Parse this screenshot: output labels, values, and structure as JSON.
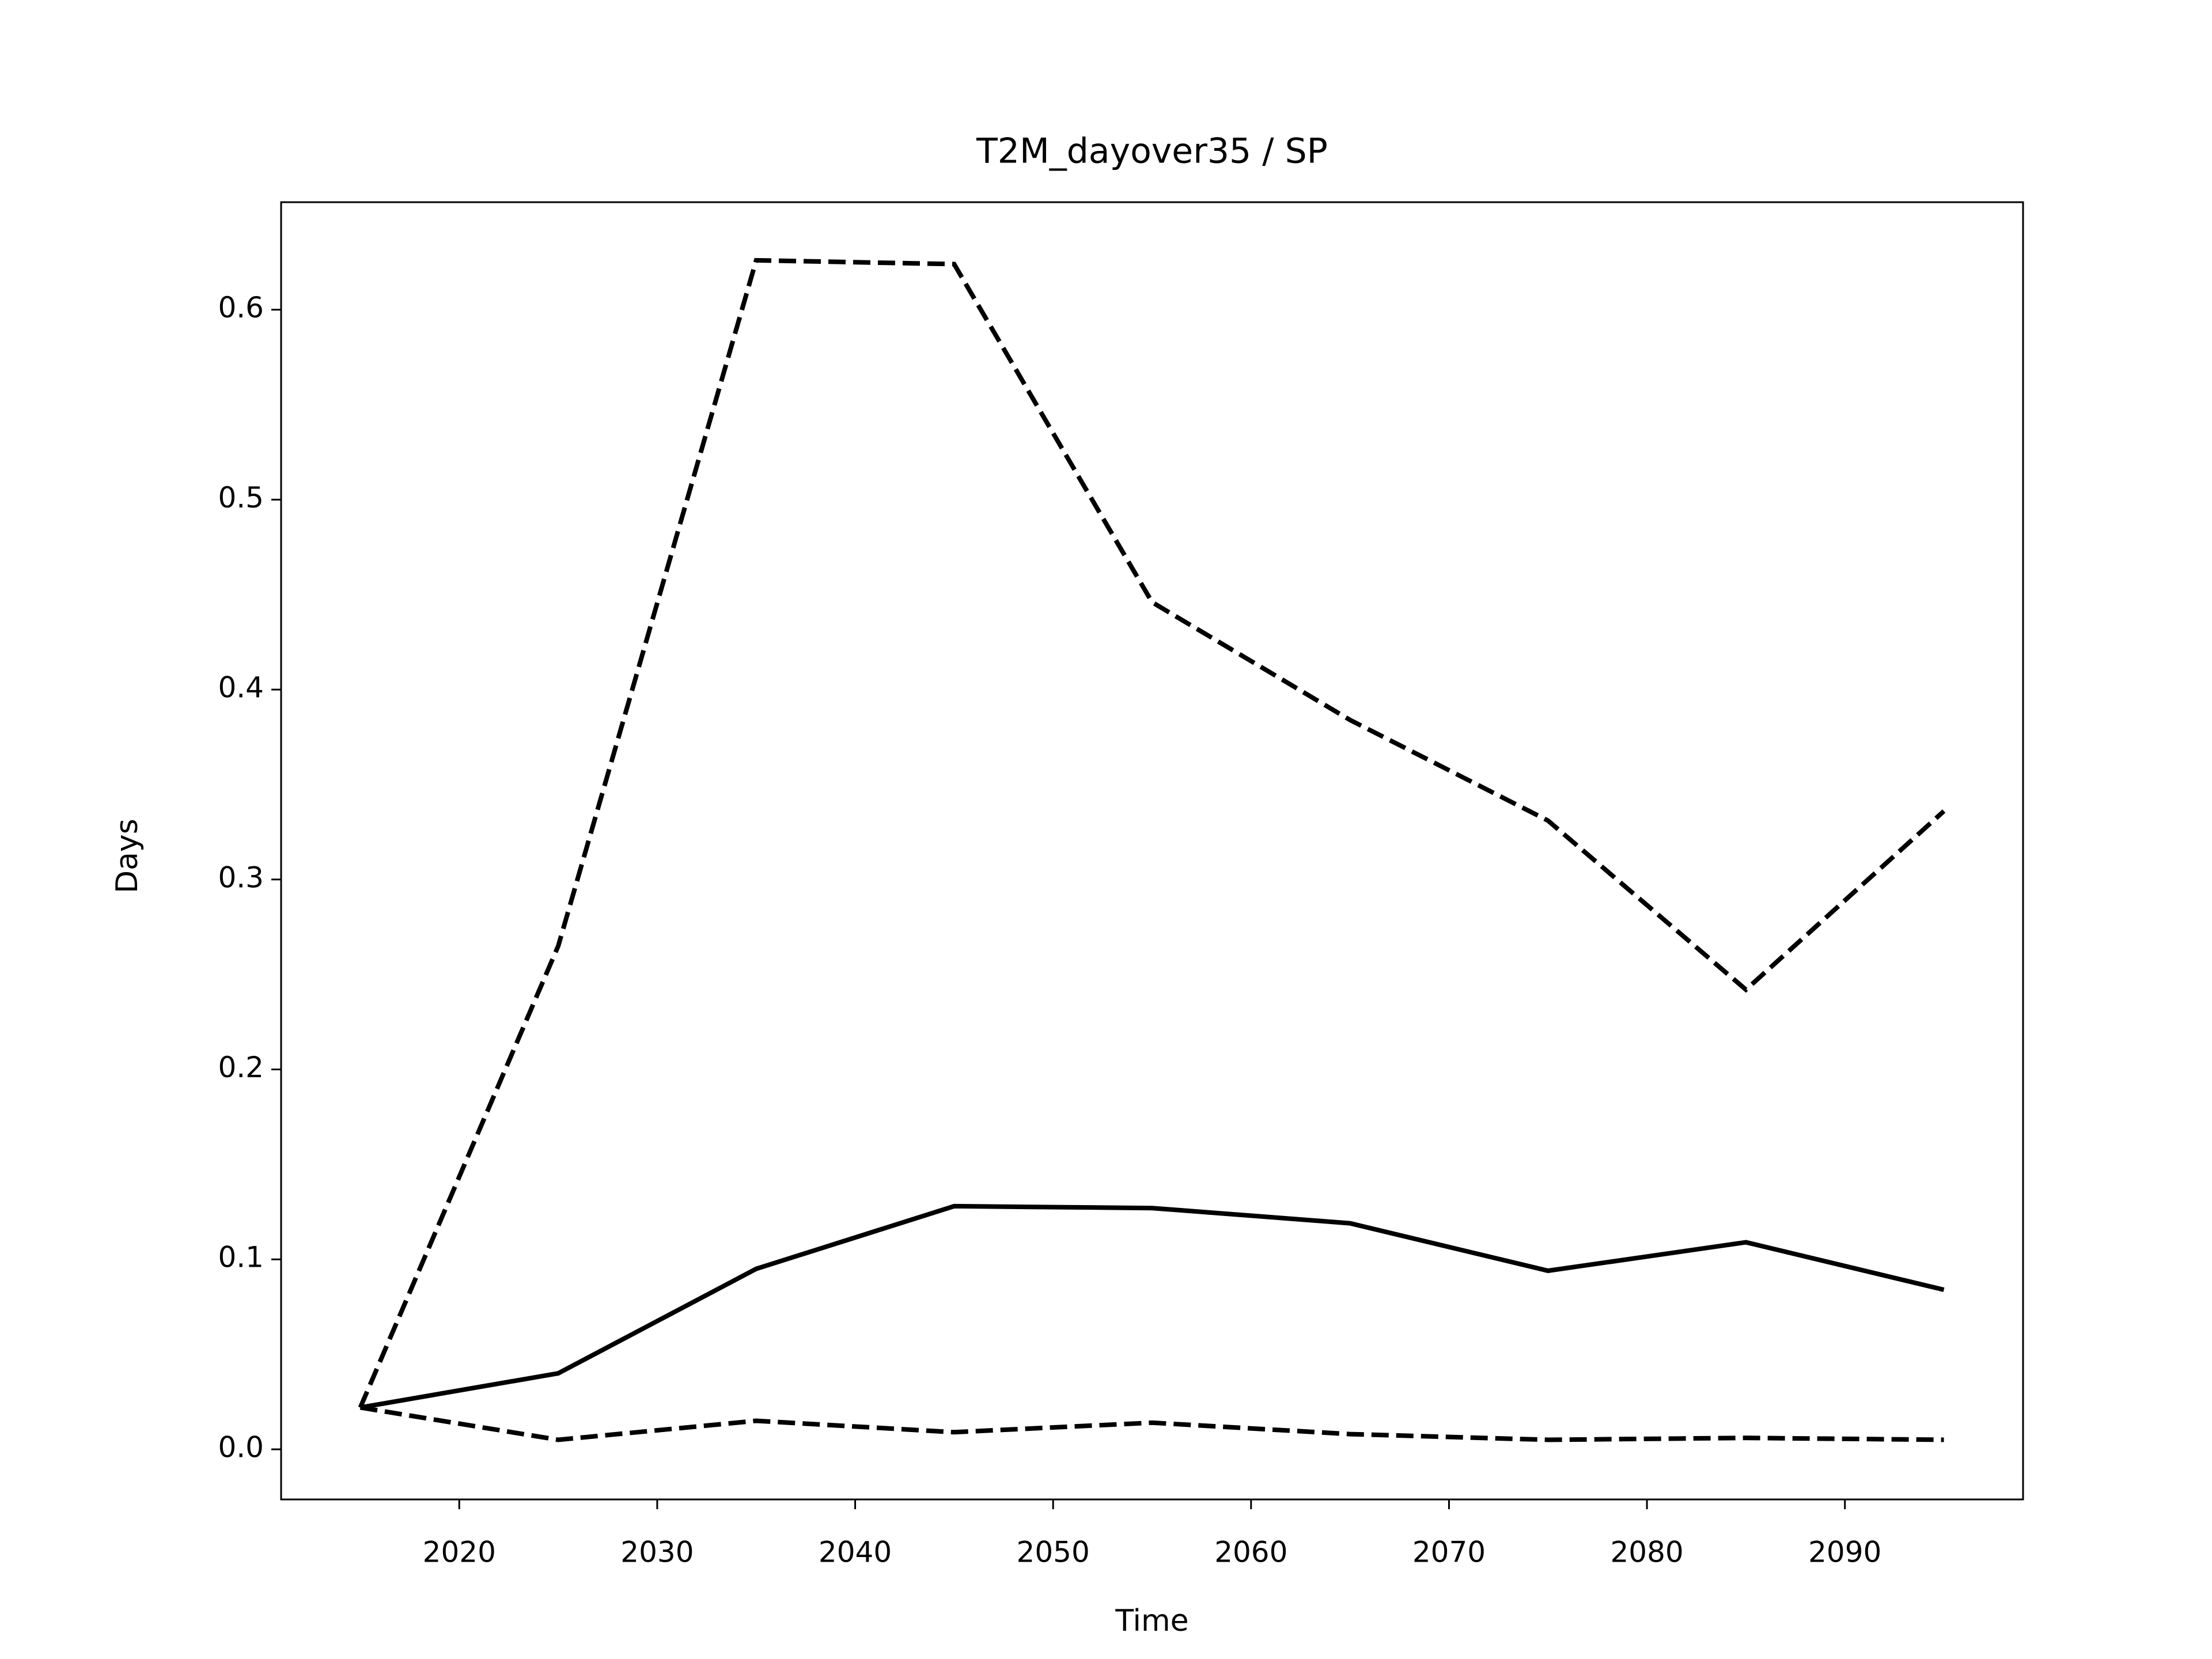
{
  "chart_data": {
    "type": "line",
    "title": "T2M_dayover35 / SP",
    "x_label": "Time",
    "y_label": "Days",
    "x": [
      2015,
      2025,
      2035,
      2045,
      2055,
      2065,
      2075,
      2085,
      2095
    ],
    "series": [
      {
        "color": "#000000",
        "dash": "solid",
        "values": [
          0.022,
          0.04,
          0.095,
          0.128,
          0.127,
          0.119,
          0.094,
          0.109,
          0.084
        ]
      },
      {
        "color": "#000000",
        "dash": "dashed",
        "values": [
          0.022,
          0.265,
          0.626,
          0.624,
          0.446,
          0.384,
          0.331,
          0.242,
          0.336
        ]
      },
      {
        "color": "#000000",
        "dash": "dashed",
        "values": [
          0.022,
          0.005,
          0.015,
          0.009,
          0.014,
          0.008,
          0.005,
          0.006,
          0.005
        ]
      }
    ],
    "xlim": [
      2011,
      2099
    ],
    "xticks": [
      2020,
      2030,
      2040,
      2050,
      2060,
      2070,
      2080,
      2090
    ],
    "ylim": [
      -0.0264,
      0.6566
    ],
    "yticks": [
      {
        "value": 0,
        "label": "0.0"
      },
      0.1,
      0.2,
      0.3,
      0.4,
      0.5,
      0.6
    ],
    "grid": false
  }
}
